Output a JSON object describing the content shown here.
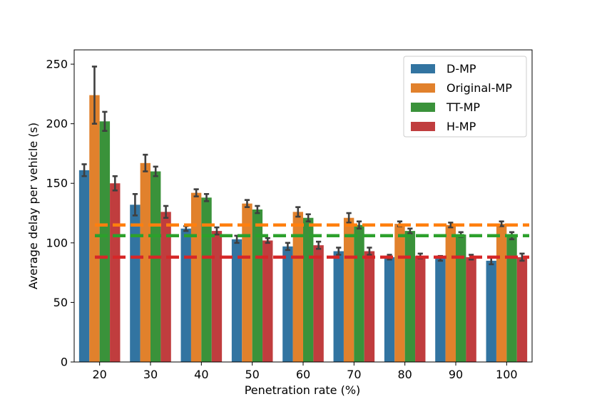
{
  "chart_data": {
    "type": "bar",
    "xlabel": "Penetration rate (%)",
    "ylabel": "Average delay per vehicle (s)",
    "ylim": [
      0,
      262
    ],
    "yticks": [
      0,
      50,
      100,
      150,
      200,
      250
    ],
    "categories": [
      "20",
      "30",
      "40",
      "50",
      "60",
      "70",
      "80",
      "90",
      "100"
    ],
    "legend_position": "top-right",
    "grid": false,
    "series": [
      {
        "name": "D-MP",
        "color": "#3274a1",
        "values": [
          161,
          132,
          112,
          103,
          97,
          93,
          88,
          87,
          85
        ],
        "errors": [
          5,
          9,
          2,
          3,
          3,
          3,
          2,
          2,
          3
        ]
      },
      {
        "name": "Original-MP",
        "color": "#e1812c",
        "values": [
          224,
          167,
          142,
          133,
          126,
          121,
          116,
          115,
          116
        ],
        "errors": [
          24,
          7,
          3,
          3,
          4,
          4,
          2,
          2,
          2
        ]
      },
      {
        "name": "TT-MP",
        "color": "#3a923a",
        "values": [
          202,
          160,
          138,
          128,
          121,
          115,
          110,
          107,
          106
        ],
        "errors": [
          8,
          4,
          3,
          3,
          3,
          3,
          2,
          2,
          3
        ]
      },
      {
        "name": "H-MP",
        "color": "#c03d3e",
        "values": [
          150,
          126,
          110,
          102,
          98,
          93,
          89,
          88,
          88
        ],
        "errors": [
          6,
          5,
          3,
          2,
          3,
          3,
          2,
          2,
          3
        ]
      }
    ],
    "reference_lines": [
      {
        "series": "Original-MP",
        "value": 115,
        "color": "#ff7f0e"
      },
      {
        "series": "TT-MP",
        "value": 106,
        "color": "#2ca02c"
      },
      {
        "series": "H-MP",
        "value": 88,
        "color": "#d62728"
      }
    ]
  }
}
